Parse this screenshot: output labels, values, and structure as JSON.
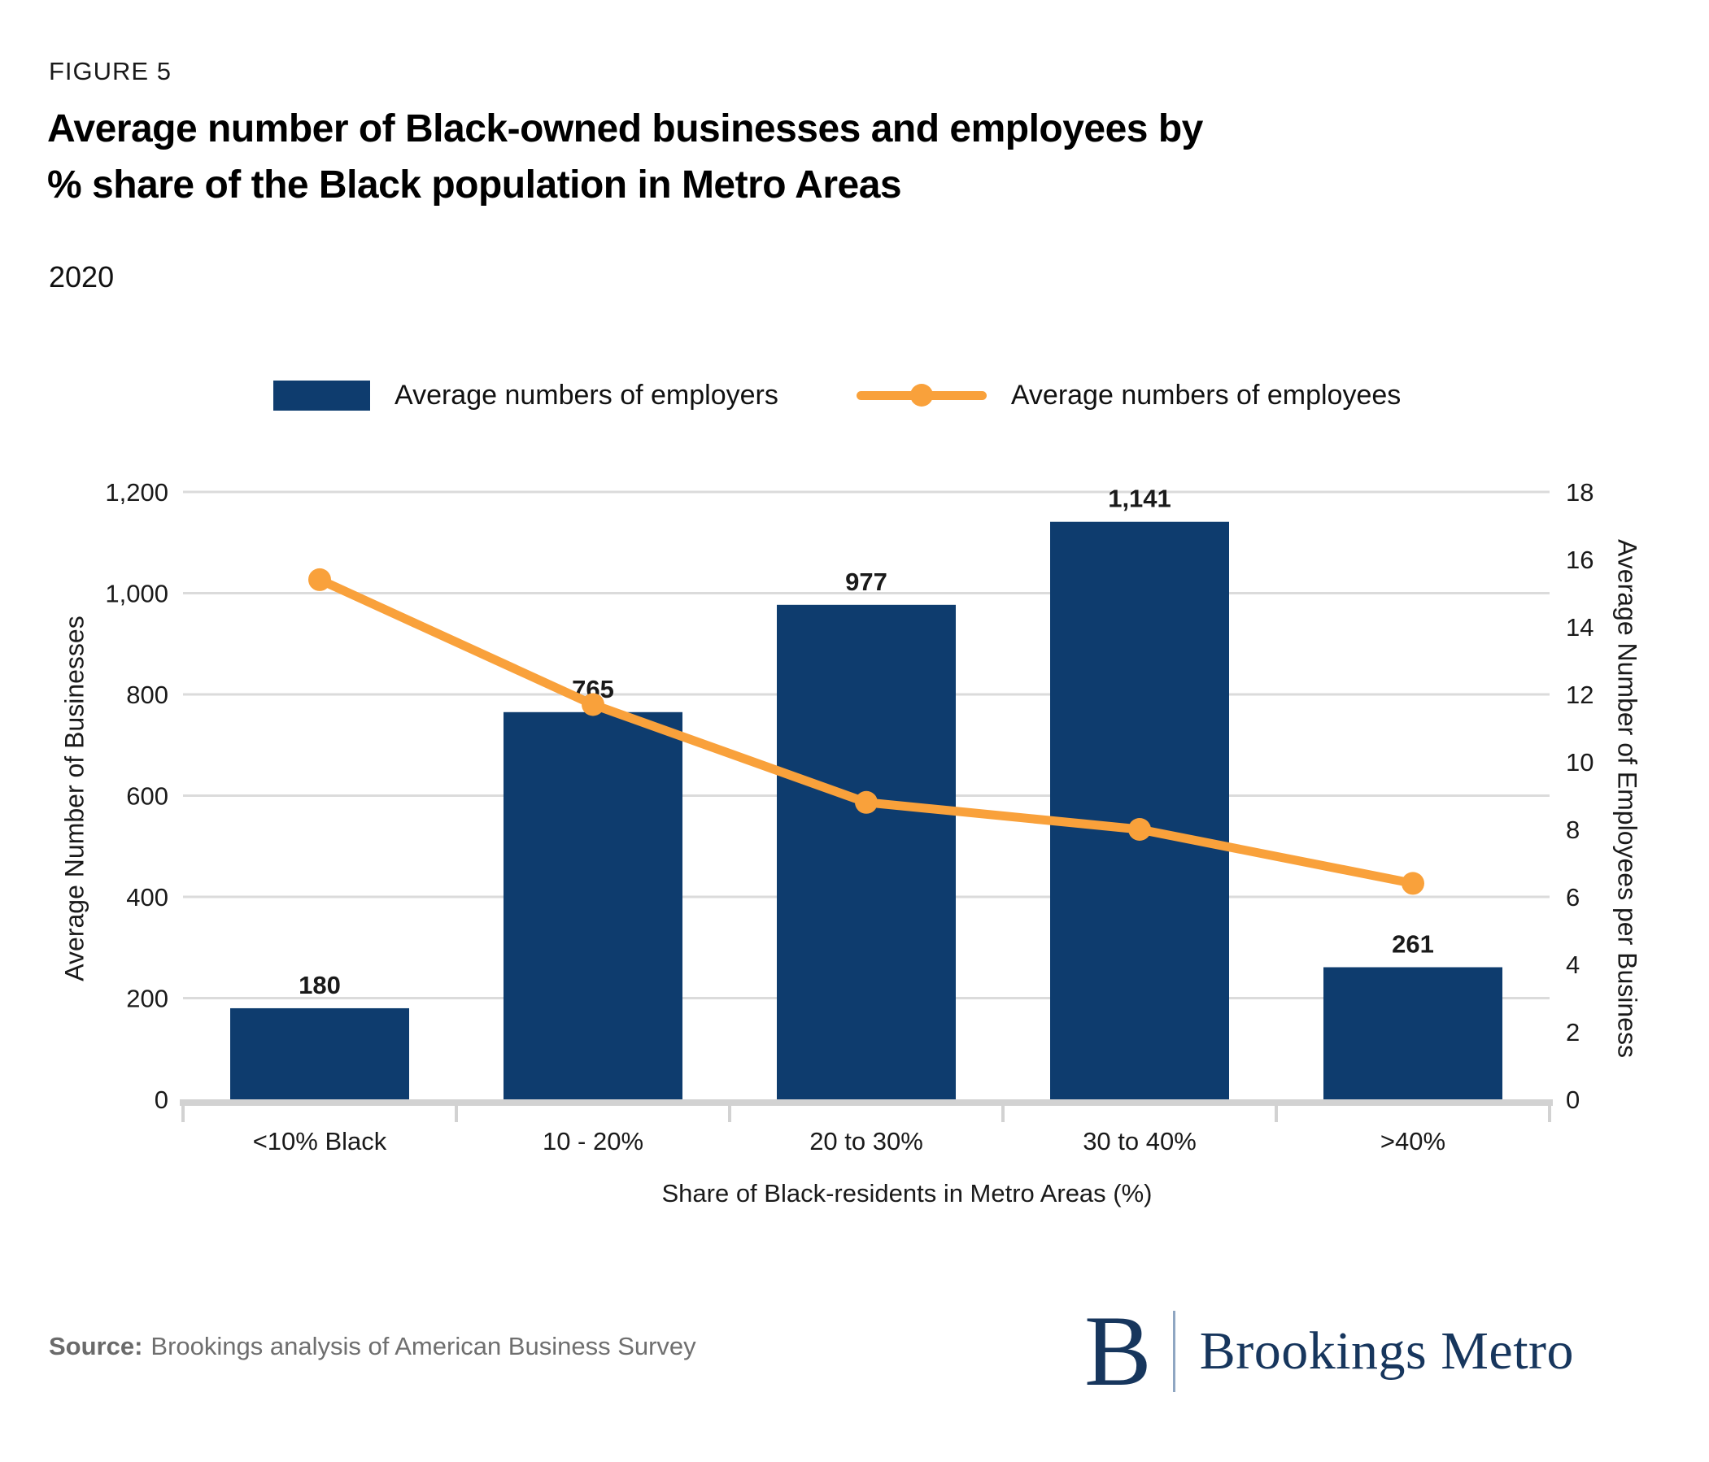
{
  "figure_label": "FIGURE 5",
  "title": "Average number of Black-owned businesses and employees by\n% share of the Black population in Metro Areas",
  "subtitle": "2020",
  "legend": {
    "employers_label": "Average numbers of employers",
    "employees_label": "Average numbers of employees"
  },
  "source": {
    "prefix": "Source:",
    "text": "Brookings analysis of American Business Survey"
  },
  "logo": {
    "monogram": "B",
    "wordmark": "Brookings Metro"
  },
  "colors": {
    "navy": "#0E3C6E",
    "orange": "#F9A13B",
    "gridline": "#DBDBDB",
    "axis_line": "#D2D2D2",
    "text": "#1a1a1a",
    "muted": "#6F6F6F",
    "logo_navy": "#17365D"
  },
  "chart_data": {
    "type": "bar",
    "subtype": "bar-and-line-combo",
    "categories": [
      "<10% Black",
      "10 - 20%",
      "20 to 30%",
      "30 to 40%",
      ">40%"
    ],
    "series": [
      {
        "name": "Average numbers of employers",
        "type": "bar",
        "axis": "left",
        "values": [
          180,
          765,
          977,
          1141,
          261
        ],
        "value_labels": [
          "180",
          "765",
          "977",
          "1,141",
          "261"
        ],
        "color": "#0E3C6E"
      },
      {
        "name": "Average numbers of employees",
        "type": "line",
        "axis": "right",
        "values": [
          15.4,
          11.7,
          8.8,
          8.0,
          6.4
        ],
        "color": "#F9A13B"
      }
    ],
    "left_axis": {
      "title": "Average Number of Businesses",
      "min": 0,
      "max": 1200,
      "step": 200,
      "tick_labels": [
        "0",
        "200",
        "400",
        "600",
        "800",
        "1,000",
        "1,200"
      ]
    },
    "right_axis": {
      "title": "Average Number of Employees per Business",
      "min": 0,
      "max": 18,
      "step": 2,
      "tick_labels": [
        "0",
        "2",
        "4",
        "6",
        "8",
        "10",
        "12",
        "14",
        "16",
        "18"
      ]
    },
    "x_axis": {
      "title": "Share of Black-residents in Metro Areas (%)"
    },
    "grid": true,
    "legend_position": "top"
  }
}
